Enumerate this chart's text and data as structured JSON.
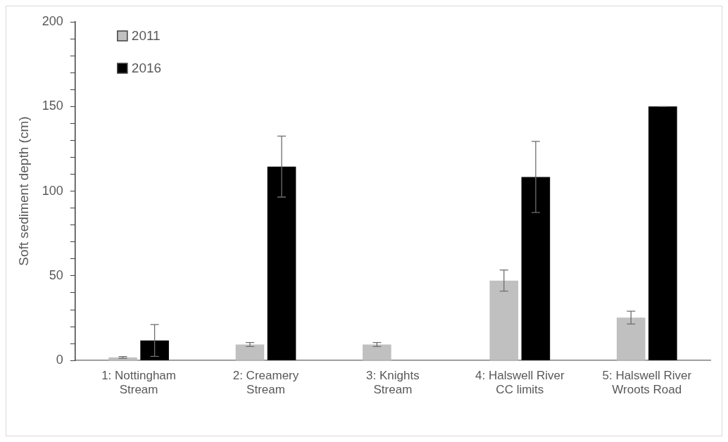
{
  "chart_data": {
    "type": "bar",
    "ylabel": "Soft sediment depth (cm)",
    "categories": [
      "1: Nottingham Stream",
      "2: Creamery Stream",
      "3: Knights Stream",
      "4: Halswell River CC limits",
      "5: Halswell River Wroots Road"
    ],
    "series": [
      {
        "name": "2011",
        "color": "#c0c0c0",
        "values": [
          1.8,
          9.4,
          9.4,
          47.2,
          25.3
        ],
        "errors": [
          0.5,
          1.2,
          1.2,
          6.2,
          3.8
        ]
      },
      {
        "name": "2016",
        "color": "#000000",
        "values": [
          11.8,
          114.5,
          null,
          108.4,
          150
        ],
        "errors": [
          9.4,
          18,
          null,
          21,
          0
        ]
      }
    ],
    "ylim": [
      0,
      200
    ],
    "yticks": [
      0,
      {
        "value": 10,
        "label": null
      },
      {
        "value": 20,
        "label": null
      },
      {
        "value": 30,
        "label": null
      },
      {
        "value": 40,
        "label": null
      },
      50,
      {
        "value": 60,
        "label": null
      },
      {
        "value": 70,
        "label": null
      },
      {
        "value": 80,
        "label": null
      },
      {
        "value": 90,
        "label": null
      },
      100,
      {
        "value": 110,
        "label": null
      },
      {
        "value": 120,
        "label": null
      },
      {
        "value": 130,
        "label": null
      },
      {
        "value": 140,
        "label": null
      },
      150,
      {
        "value": 160,
        "label": null
      },
      {
        "value": 170,
        "label": null
      },
      {
        "value": 180,
        "label": null
      },
      {
        "value": 190,
        "label": null
      },
      200
    ],
    "grid": false,
    "legend": "top left"
  }
}
